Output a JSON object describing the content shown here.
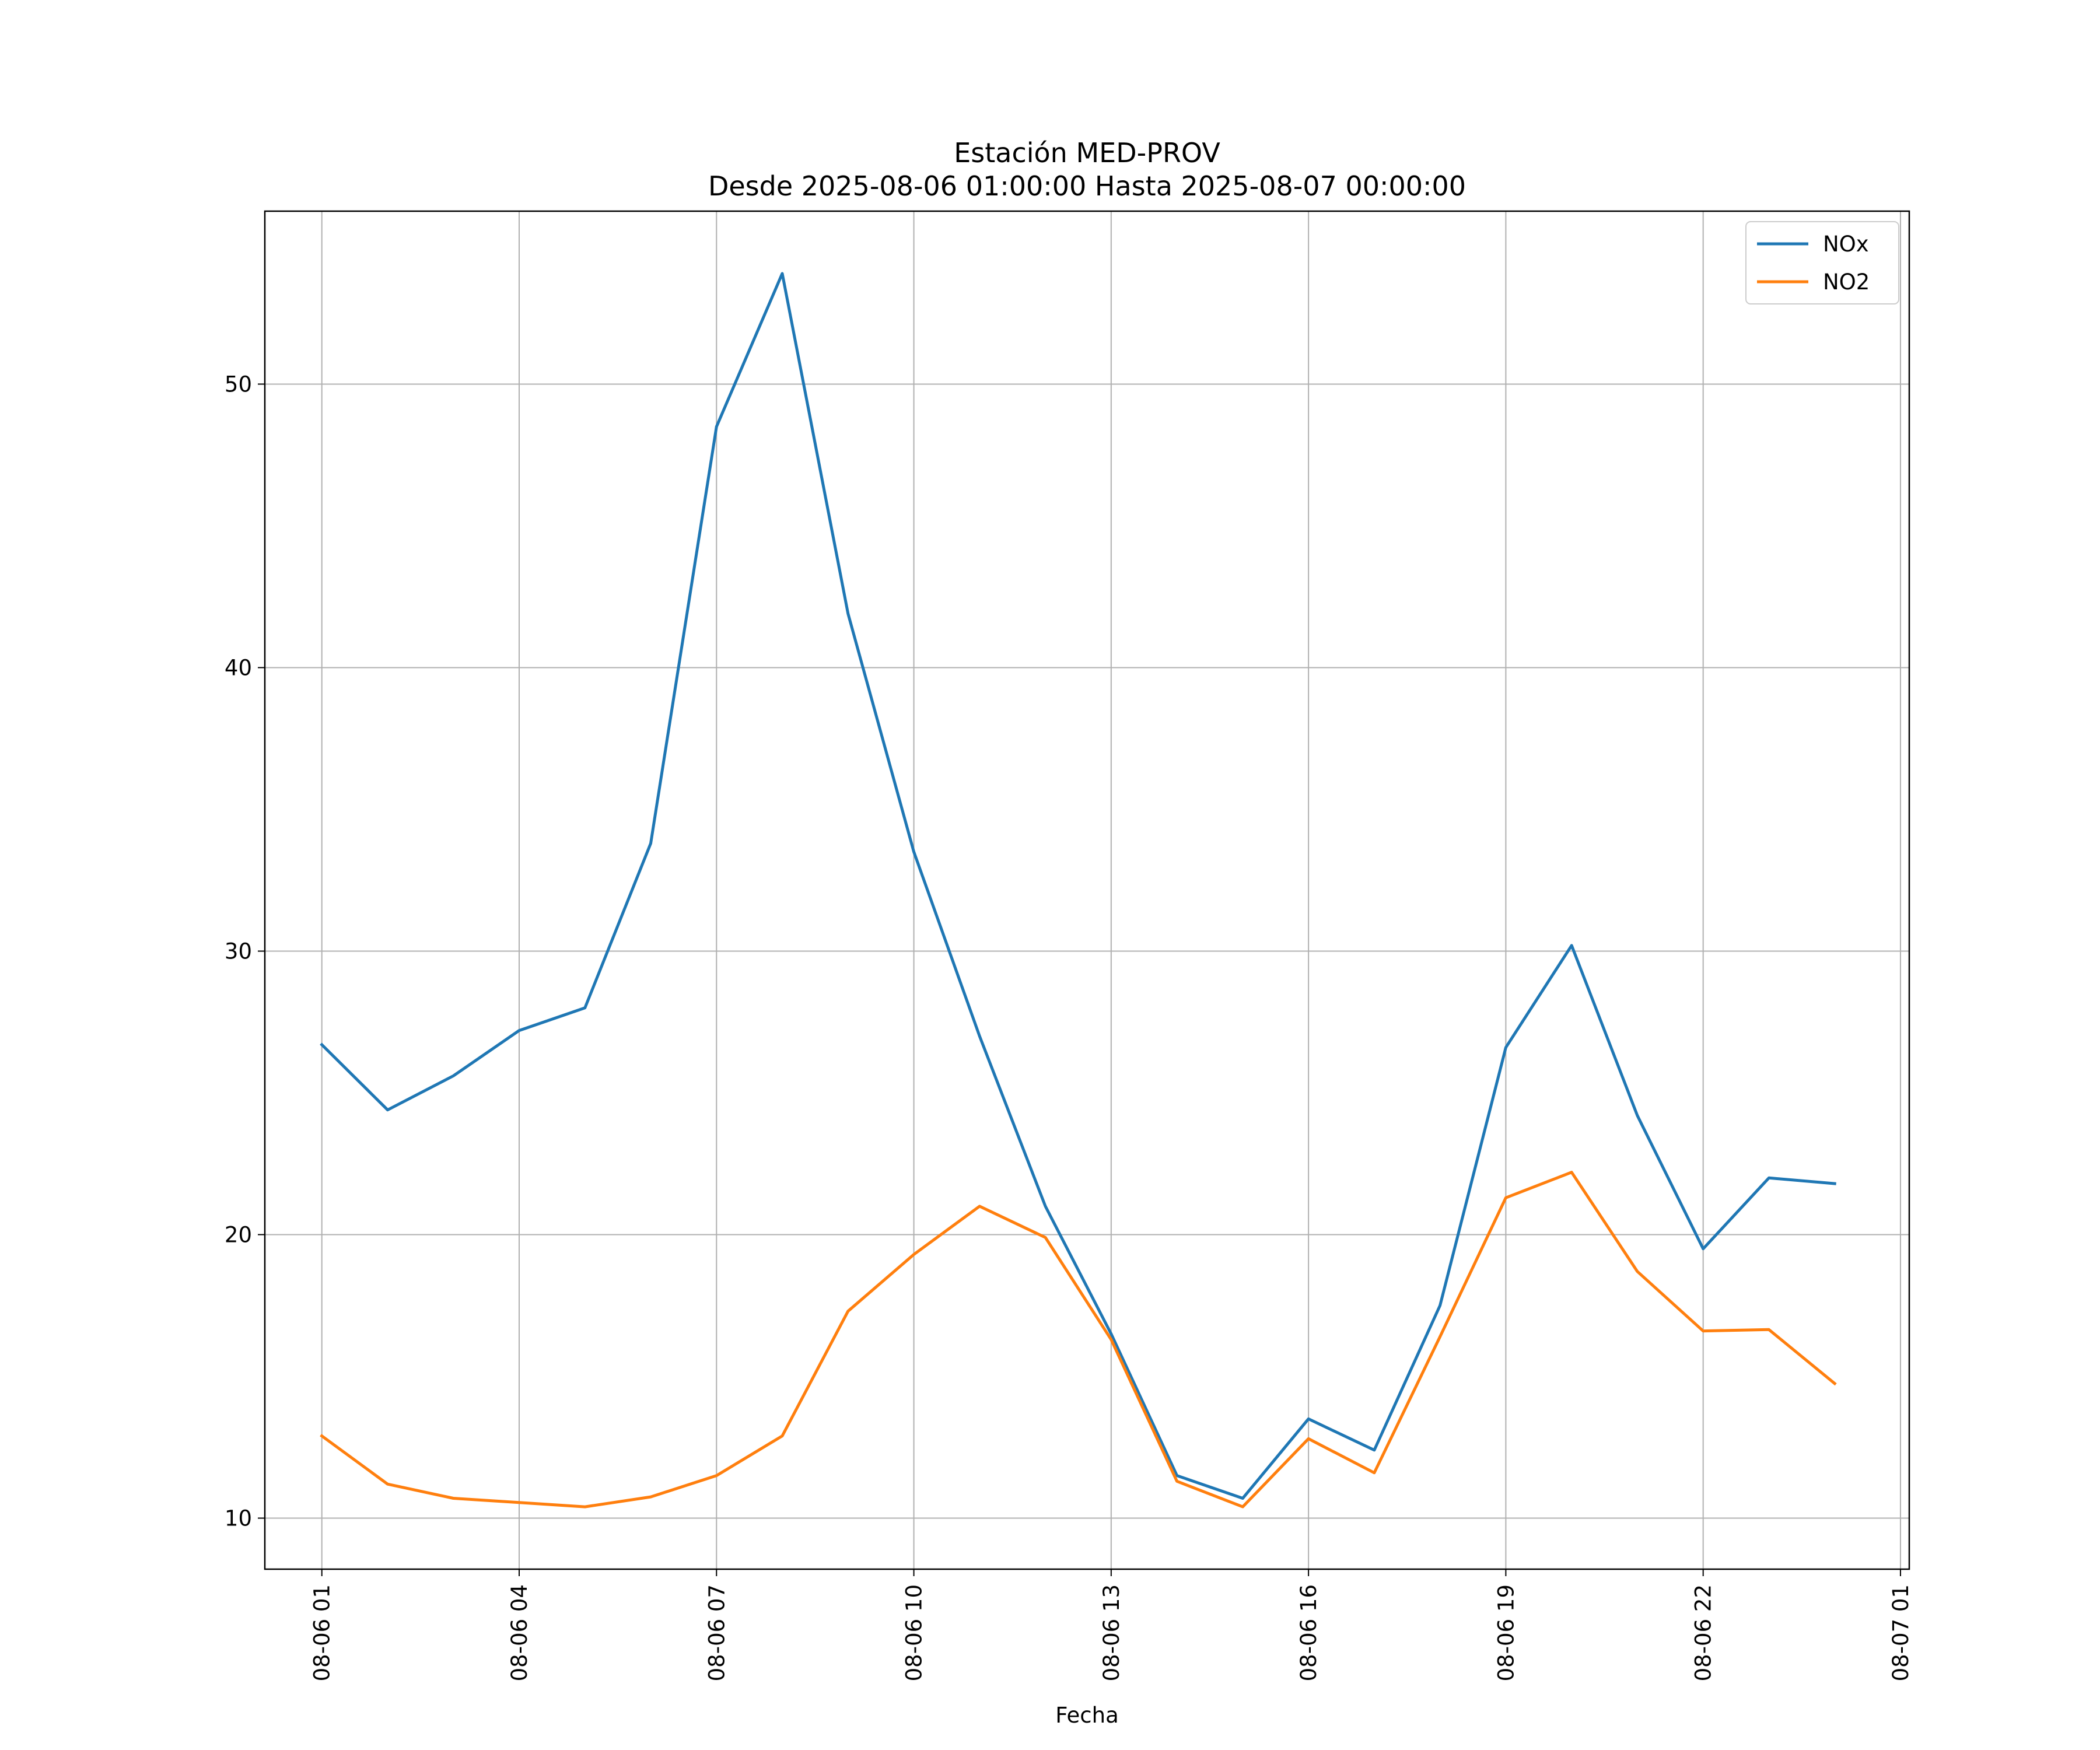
{
  "chart_data": {
    "type": "line",
    "title": "Estación MED-PROV",
    "subtitle": "Desde 2025-08-06 01:00:00 Hasta 2025-08-07 00:00:00",
    "xlabel": "Fecha",
    "ylabel": "",
    "x": [
      "2025-08-06 01:00",
      "2025-08-06 02:00",
      "2025-08-06 03:00",
      "2025-08-06 04:00",
      "2025-08-06 05:00",
      "2025-08-06 06:00",
      "2025-08-06 07:00",
      "2025-08-06 08:00",
      "2025-08-06 09:00",
      "2025-08-06 10:00",
      "2025-08-06 11:00",
      "2025-08-06 12:00",
      "2025-08-06 13:00",
      "2025-08-06 14:00",
      "2025-08-06 15:00",
      "2025-08-06 16:00",
      "2025-08-06 17:00",
      "2025-08-06 18:00",
      "2025-08-06 19:00",
      "2025-08-06 20:00",
      "2025-08-06 21:00",
      "2025-08-06 22:00",
      "2025-08-06 23:00",
      "2025-08-07 00:00"
    ],
    "series": [
      {
        "name": "NOx",
        "color": "#1f77b4",
        "values": [
          26.7,
          24.4,
          25.6,
          27.2,
          28.0,
          33.8,
          48.5,
          53.9,
          41.9,
          33.5,
          27.0,
          21.0,
          16.5,
          11.5,
          10.7,
          13.5,
          12.4,
          17.5,
          26.6,
          30.2,
          24.2,
          19.5,
          22.0,
          21.8
        ]
      },
      {
        "name": "NO2",
        "color": "#ff7f0e",
        "values": [
          12.9,
          11.2,
          10.7,
          10.55,
          10.4,
          10.75,
          11.5,
          12.9,
          17.3,
          19.3,
          21.0,
          19.9,
          16.3,
          11.3,
          10.4,
          12.8,
          11.6,
          16.4,
          21.3,
          22.2,
          18.7,
          16.6,
          16.65,
          14.75
        ]
      }
    ],
    "xticks": [
      "08-06 01",
      "08-06 04",
      "08-06 07",
      "08-06 10",
      "08-06 13",
      "08-06 16",
      "08-06 19",
      "08-06 22",
      "08-07 01"
    ],
    "xlim": [
      "2025-08-06 00:08",
      "2025-08-07 01:08"
    ],
    "yticks": [
      "10",
      "20",
      "30",
      "40",
      "50"
    ],
    "ylim": [
      8.2,
      56.1
    ],
    "grid": true,
    "legend": "upper right"
  }
}
